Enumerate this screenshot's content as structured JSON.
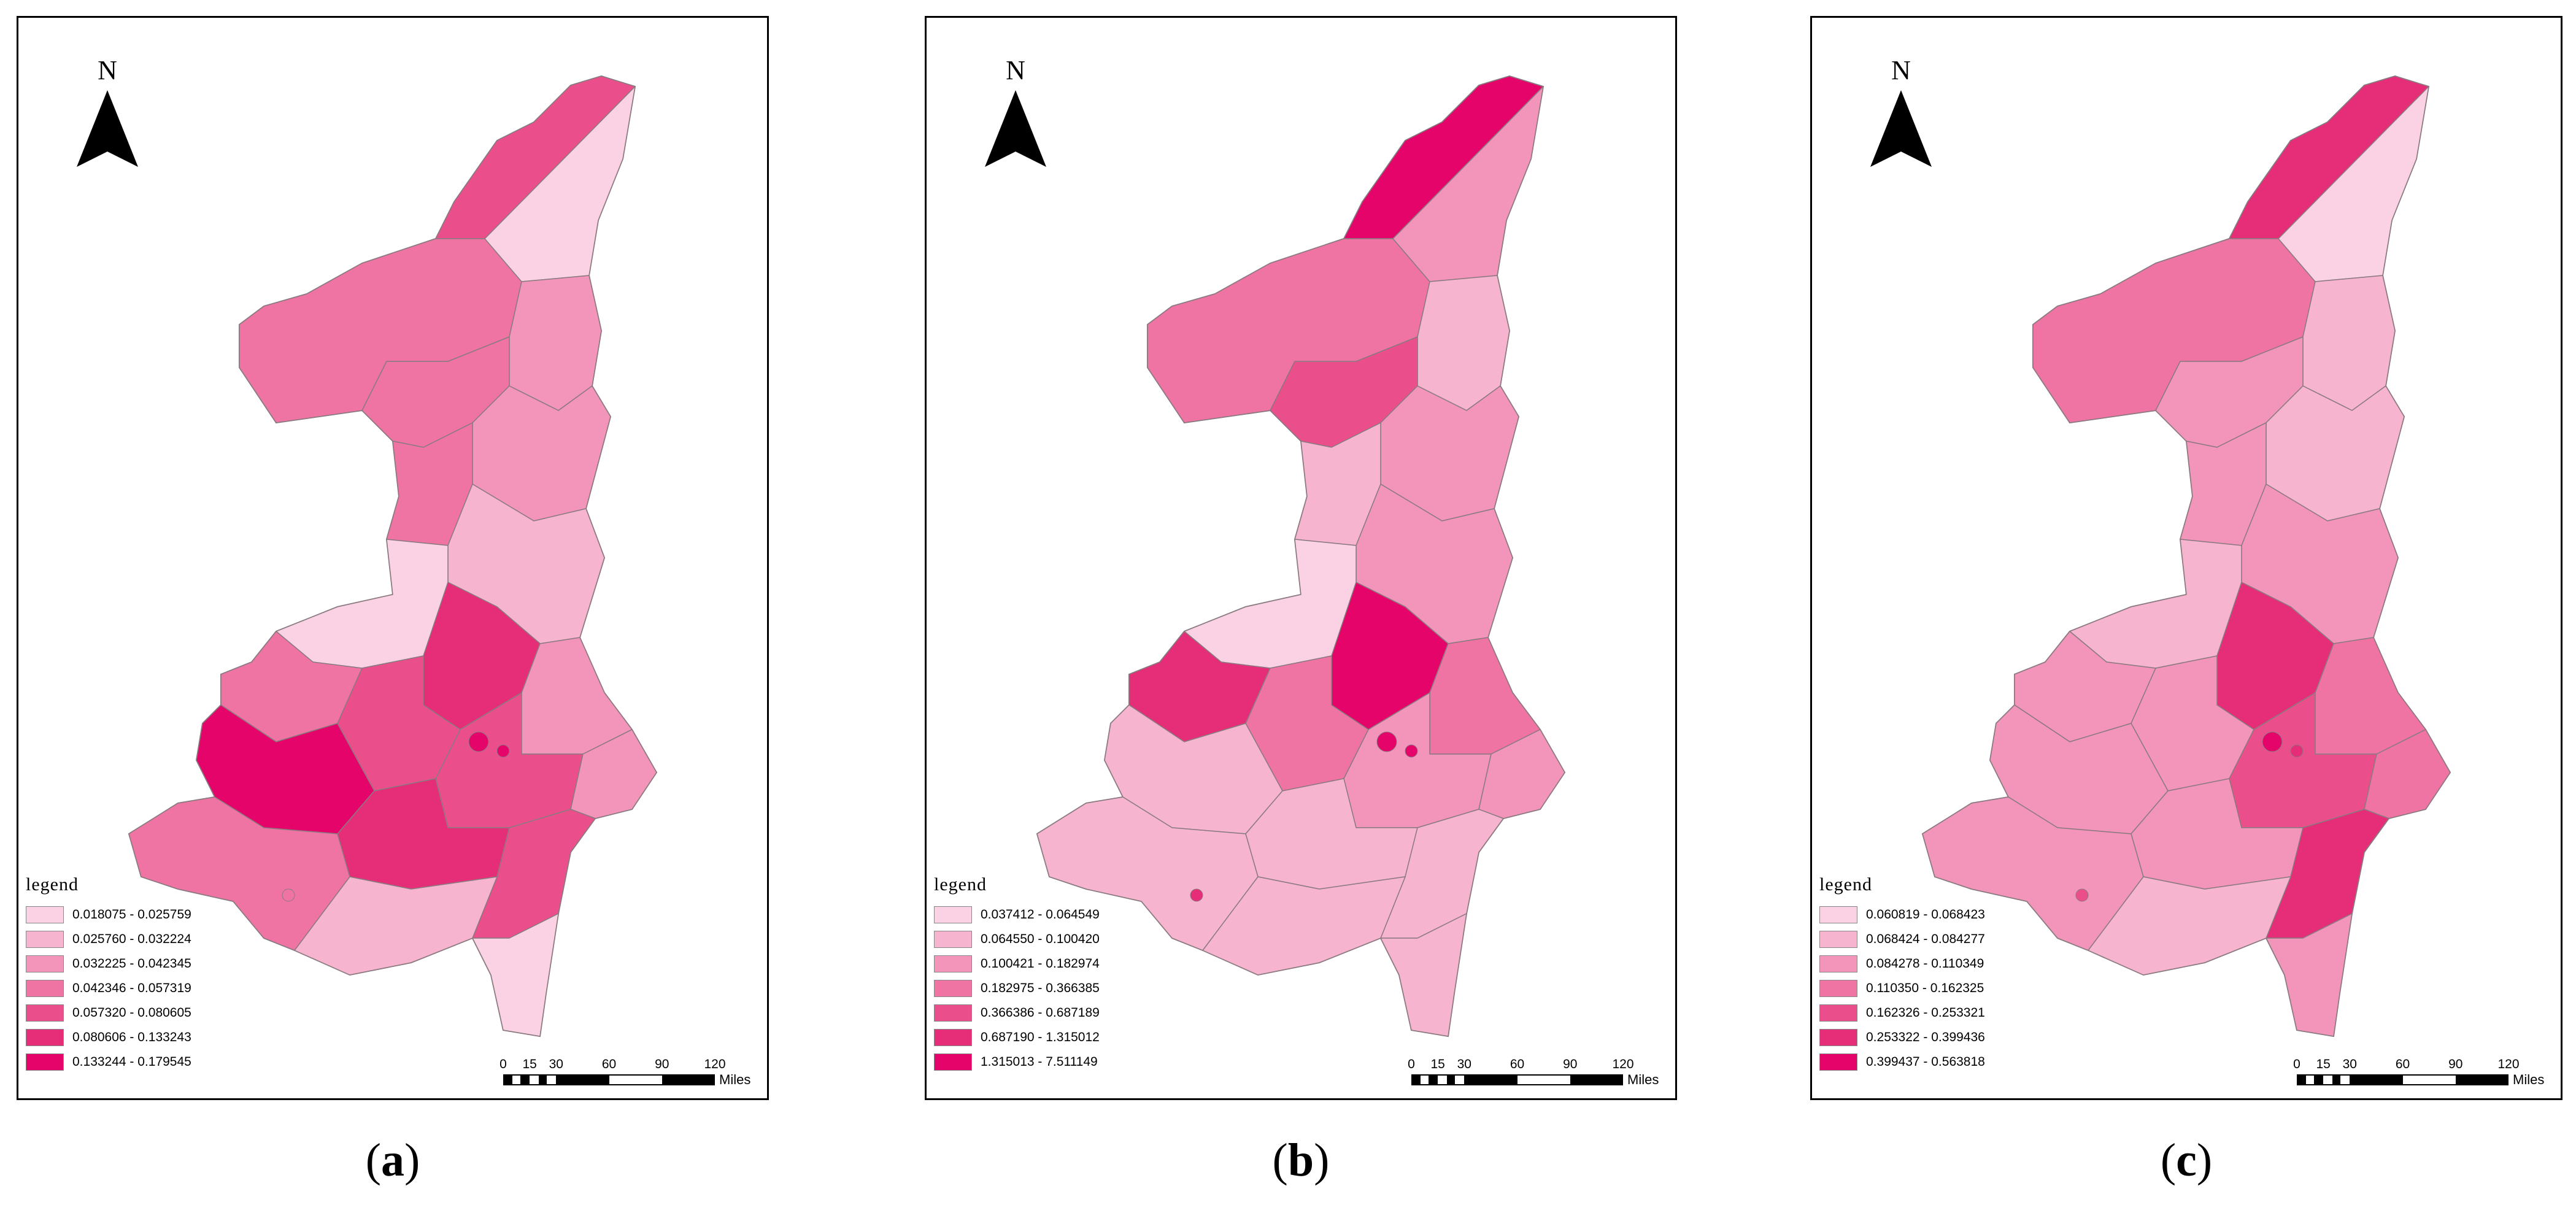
{
  "north_label": "N",
  "legend_title": "legend",
  "scale": {
    "ticks": [
      "0",
      "15",
      "30",
      "60",
      "90",
      "120"
    ],
    "units": "Miles"
  },
  "colors": {
    "class1": "#fad2e3",
    "class2": "#f7b4cf",
    "class3": "#f394ba",
    "class4": "#ef74a4",
    "class5": "#ea4f8c",
    "class6": "#e62e78",
    "class7": "#e4046a",
    "boundary": "#8a7a80"
  },
  "panels": [
    {
      "id": "a",
      "label_open": "(",
      "label_letter": "a",
      "label_close": ")",
      "legend": [
        {
          "range": "0.018075 - 0.025759",
          "color": "#fad2e3"
        },
        {
          "range": "0.025760 - 0.032224",
          "color": "#f7b4cf"
        },
        {
          "range": "0.032225 - 0.042345",
          "color": "#f394ba"
        },
        {
          "range": "0.042346 - 0.057319",
          "color": "#ef74a4"
        },
        {
          "range": "0.057320 - 0.080605",
          "color": "#ea4f8c"
        },
        {
          "range": "0.080606 - 0.133243",
          "color": "#e62e78"
        },
        {
          "range": "0.133244 - 0.179545",
          "color": "#e4046a"
        }
      ]
    },
    {
      "id": "b",
      "label_open": "(",
      "label_letter": "b",
      "label_close": ")",
      "legend": [
        {
          "range": "0.037412 - 0.064549",
          "color": "#fad2e3"
        },
        {
          "range": "0.064550 - 0.100420",
          "color": "#f7b4cf"
        },
        {
          "range": "0.100421 - 0.182974",
          "color": "#f394ba"
        },
        {
          "range": "0.182975 - 0.366385",
          "color": "#ef74a4"
        },
        {
          "range": "0.366386 - 0.687189",
          "color": "#ea4f8c"
        },
        {
          "range": "0.687190 - 1.315012",
          "color": "#e62e78"
        },
        {
          "range": "1.315013 - 7.511149",
          "color": "#e4046a"
        }
      ]
    },
    {
      "id": "c",
      "label_open": "(",
      "label_letter": "c",
      "label_close": ")",
      "legend": [
        {
          "range": "0.060819 - 0.068423",
          "color": "#fad2e3"
        },
        {
          "range": "0.068424 - 0.084277",
          "color": "#f7b4cf"
        },
        {
          "range": "0.084278 - 0.110349",
          "color": "#f394ba"
        },
        {
          "range": "0.110350 - 0.162325",
          "color": "#ef74a4"
        },
        {
          "range": "0.162326 - 0.253321",
          "color": "#ea4f8c"
        },
        {
          "range": "0.253322 - 0.399436",
          "color": "#e62e78"
        },
        {
          "range": "0.399437 - 0.563818",
          "color": "#e4046a"
        }
      ]
    }
  ]
}
